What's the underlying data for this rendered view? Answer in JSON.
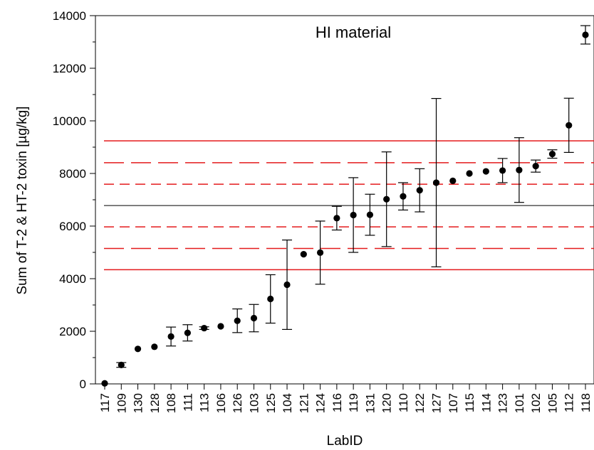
{
  "chart_data": {
    "type": "scatter",
    "title": "HI material",
    "xlabel": "LabID",
    "ylabel": "Sum of T-2 & HT-2 toxin [µg/kg]",
    "ylim": [
      0,
      14000
    ],
    "yticks": [
      0,
      2000,
      4000,
      6000,
      8000,
      10000,
      12000,
      14000
    ],
    "grid": false,
    "categories": [
      "117",
      "109",
      "130",
      "128",
      "108",
      "111",
      "113",
      "106",
      "126",
      "103",
      "125",
      "104",
      "121",
      "124",
      "116",
      "119",
      "131",
      "120",
      "110",
      "122",
      "127",
      "107",
      "115",
      "114",
      "123",
      "101",
      "102",
      "105",
      "112",
      "118"
    ],
    "series": [
      {
        "values": [
          20,
          720,
          1330,
          1410,
          1800,
          1940,
          2120,
          2190,
          2400,
          2500,
          3230,
          3770,
          4930,
          4990,
          6300,
          6420,
          6430,
          7020,
          7130,
          7360,
          7650,
          7720,
          8000,
          8080,
          8110,
          8130,
          8280,
          8740,
          9830,
          13270
        ],
        "error": [
          0,
          90,
          0,
          0,
          360,
          310,
          50,
          0,
          450,
          520,
          920,
          1700,
          0,
          1200,
          450,
          1420,
          780,
          1800,
          520,
          820,
          3200,
          0,
          0,
          0,
          460,
          1230,
          230,
          160,
          1030,
          350
        ]
      }
    ],
    "reference_lines": [
      {
        "value": 9240,
        "style": "solid",
        "color": "#e41a1c"
      },
      {
        "value": 8410,
        "style": "long-dash",
        "color": "#e41a1c"
      },
      {
        "value": 7590,
        "style": "short-dash",
        "color": "#e41a1c"
      },
      {
        "value": 6780,
        "style": "solid",
        "color": "#000000"
      },
      {
        "value": 5970,
        "style": "short-dash",
        "color": "#e41a1c"
      },
      {
        "value": 5150,
        "style": "long-dash",
        "color": "#e41a1c"
      },
      {
        "value": 4340,
        "style": "solid",
        "color": "#e41a1c"
      }
    ]
  }
}
